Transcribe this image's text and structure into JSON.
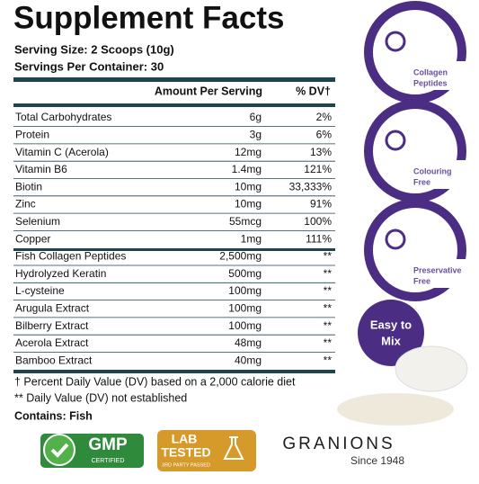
{
  "title": "Supplement Facts",
  "serving_size": "Serving Size: 2 Scoops (10g)",
  "servings": "Servings Per Container: 30",
  "header": {
    "amount": "Amount Per Serving",
    "dv": "% DV†"
  },
  "rows": [
    [
      "Total Carbohydrates",
      "6g",
      "2%"
    ],
    [
      "Protein",
      "3g",
      "6%"
    ],
    [
      "Vitamin C (Acerola)",
      "12mg",
      "13%"
    ],
    [
      "Vitamin B6",
      "1.4mg",
      "121%"
    ],
    [
      "Biotin",
      "10mg",
      "33,333%"
    ],
    [
      "Zinc",
      "10mg",
      "91%"
    ],
    [
      "Selenium",
      "55mcg",
      "100%"
    ],
    [
      "Copper",
      "1mg",
      "111%"
    ],
    [
      "Fish Collagen Peptides",
      "2,500mg",
      "**"
    ],
    [
      "Hydrolyzed Keratin",
      "500mg",
      "**"
    ],
    [
      "L-cysteine",
      "100mg",
      "**"
    ],
    [
      "Arugula Extract",
      "100mg",
      "**"
    ],
    [
      "Bilberry Extract",
      "100mg",
      "**"
    ],
    [
      "Acerola Extract",
      "48mg",
      "**"
    ],
    [
      "Bamboo Extract",
      "40mg",
      "**"
    ]
  ],
  "footnotes": [
    "† Percent Daily Value (DV) based on a 2,000 calorie diet",
    "** Daily Value (DV) not established"
  ],
  "contains": "Contains: Fish",
  "badges": [
    [
      "Collagen",
      "Peptides"
    ],
    [
      "Colouring",
      "Free"
    ],
    [
      "Preservative",
      "Free"
    ]
  ],
  "easy": [
    "Easy to",
    "Mix"
  ],
  "gmp": {
    "main": "GMP",
    "sub": "CERTIFIED"
  },
  "lab": {
    "line1": "LAB",
    "line2": "TESTED",
    "sub": "3RD PARTY PASSED"
  },
  "brand": {
    "name": "GRANIONS",
    "since": "Since 1948"
  }
}
